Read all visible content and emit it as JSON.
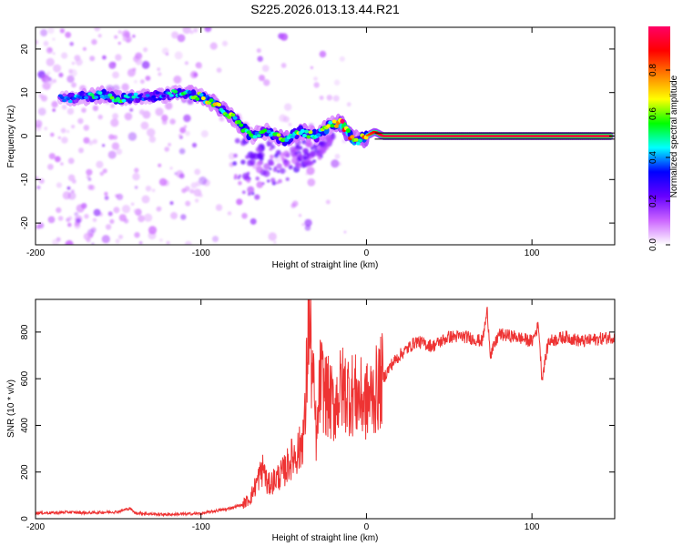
{
  "figure_title": "S225.2026.013.13.44.R21",
  "chart_data": [
    {
      "type": "heatmap",
      "id": "spectrogram",
      "xlabel": "Height of straight line (km)",
      "ylabel": "Frequency (Hz)",
      "xlim": [
        -200,
        150
      ],
      "ylim": [
        -25,
        25
      ],
      "xticks": [
        -200,
        -100,
        0,
        100
      ],
      "xtick_labels": [
        "-200",
        "-100",
        "0",
        "100"
      ],
      "yticks": [
        -20,
        -10,
        0,
        10,
        20
      ],
      "ytick_labels": [
        "-20",
        "-10",
        "0",
        "10",
        "20"
      ],
      "colorbar": {
        "label": "Normalized spectral amplitude",
        "range": [
          0,
          1
        ],
        "ticks": [
          0.0,
          0.2,
          0.4,
          0.6,
          0.8
        ],
        "tick_labels": [
          "0.0",
          "0.2",
          "0.4",
          "0.6",
          "0.8"
        ],
        "colors": [
          "#ffffff",
          "#cc66ff",
          "#6600ff",
          "#0000ff",
          "#00ffff",
          "#00ff00",
          "#ffff00",
          "#ff8000",
          "#ff0000",
          "#ff0066"
        ]
      },
      "ridge": {
        "x": [
          -200,
          -190,
          -180,
          -170,
          -160,
          -150,
          -140,
          -130,
          -120,
          -110,
          -100,
          -90,
          -80,
          -70,
          -60,
          -50,
          -40,
          -30,
          -20,
          -15,
          -10,
          -5,
          0,
          5,
          10,
          50,
          100,
          150
        ],
        "frequency": [
          8,
          9,
          8.5,
          9,
          9.5,
          8.5,
          9,
          9,
          9.5,
          10,
          9,
          7,
          4,
          0,
          1,
          -1,
          1,
          0,
          3,
          3,
          0,
          -1,
          0,
          1,
          0,
          0,
          0,
          0
        ],
        "amplitude": [
          0.25,
          0.3,
          0.35,
          0.45,
          0.5,
          0.5,
          0.4,
          0.35,
          0.4,
          0.45,
          0.55,
          0.6,
          0.55,
          0.5,
          0.45,
          0.55,
          0.55,
          0.5,
          0.6,
          0.85,
          0.7,
          0.5,
          0.8,
          0.9,
          0.95,
          0.95,
          0.95,
          0.95
        ]
      }
    },
    {
      "type": "line",
      "id": "snr",
      "xlabel": "Height of straight line (km)",
      "ylabel": "SNR (10 * v/v)",
      "xlim": [
        -200,
        150
      ],
      "ylim": [
        0,
        940
      ],
      "xticks": [
        -200,
        -100,
        0,
        100
      ],
      "xtick_labels": [
        "-200",
        "-100",
        "0",
        "100"
      ],
      "yticks": [
        0,
        200,
        400,
        600,
        800
      ],
      "ytick_labels": [
        "0",
        "200",
        "400",
        "600",
        "800"
      ],
      "line_color": "#ee3333",
      "series": [
        {
          "name": "SNR",
          "x": [
            -200,
            -190,
            -180,
            -170,
            -160,
            -150,
            -143,
            -140,
            -130,
            -120,
            -110,
            -100,
            -90,
            -85,
            -80,
            -75,
            -70,
            -65,
            -62,
            -60,
            -55,
            -50,
            -45,
            -40,
            -37,
            -35,
            -30,
            -28,
            -25,
            -20,
            -15,
            -10,
            -5,
            0,
            5,
            10,
            15,
            20,
            25,
            30,
            40,
            50,
            60,
            70,
            73,
            75,
            80,
            90,
            100,
            104,
            106,
            110,
            120,
            130,
            140,
            150
          ],
          "y": [
            25,
            25,
            28,
            25,
            27,
            30,
            45,
            25,
            20,
            18,
            20,
            22,
            35,
            40,
            50,
            60,
            90,
            180,
            220,
            140,
            170,
            200,
            260,
            300,
            420,
            880,
            320,
            600,
            540,
            480,
            560,
            540,
            520,
            500,
            540,
            600,
            660,
            700,
            730,
            760,
            740,
            780,
            780,
            760,
            890,
            700,
            790,
            780,
            760,
            830,
            600,
            760,
            780,
            760,
            770,
            780
          ]
        }
      ]
    }
  ]
}
